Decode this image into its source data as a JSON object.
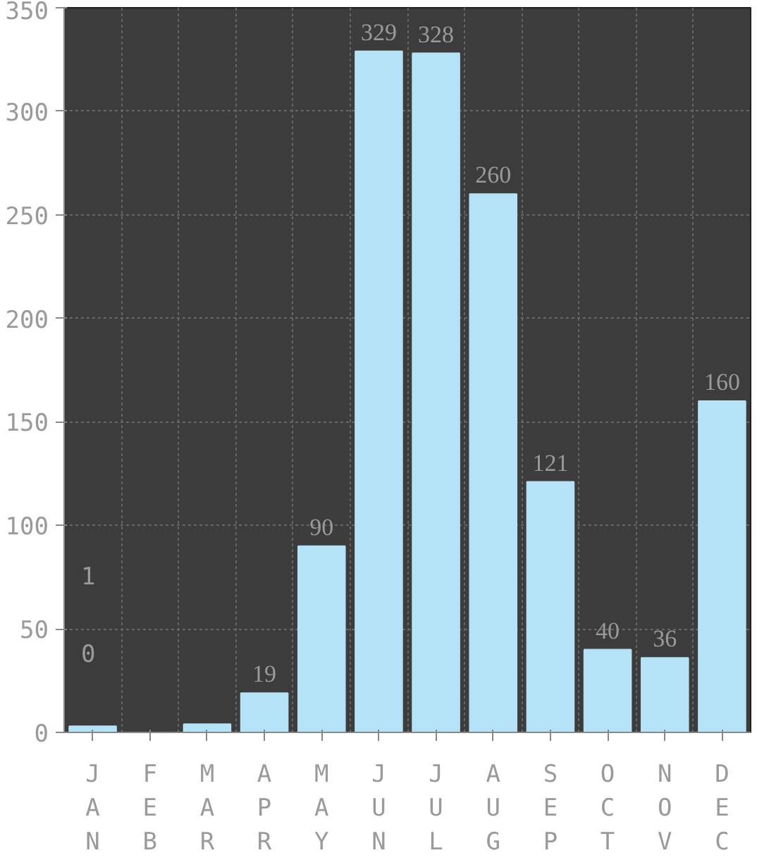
{
  "chart_data": {
    "type": "bar",
    "categories": [
      "JAN",
      "FEB",
      "MAR",
      "APR",
      "MAY",
      "JUN",
      "JUL",
      "AUG",
      "SEP",
      "OCT",
      "NOV",
      "DEC"
    ],
    "values": [
      3,
      0,
      4,
      19,
      90,
      329,
      328,
      260,
      121,
      40,
      36,
      160
    ],
    "value_labels": [
      null,
      null,
      null,
      "19",
      "90",
      "329",
      "328",
      "260",
      "121",
      "40",
      "36",
      "160"
    ],
    "annotations": [
      "0",
      "1"
    ],
    "color": "#b4e2f6",
    "ylim": [
      0,
      350
    ],
    "yticks": [
      0,
      50,
      100,
      150,
      200,
      250,
      300,
      350
    ],
    "grid": true
  }
}
